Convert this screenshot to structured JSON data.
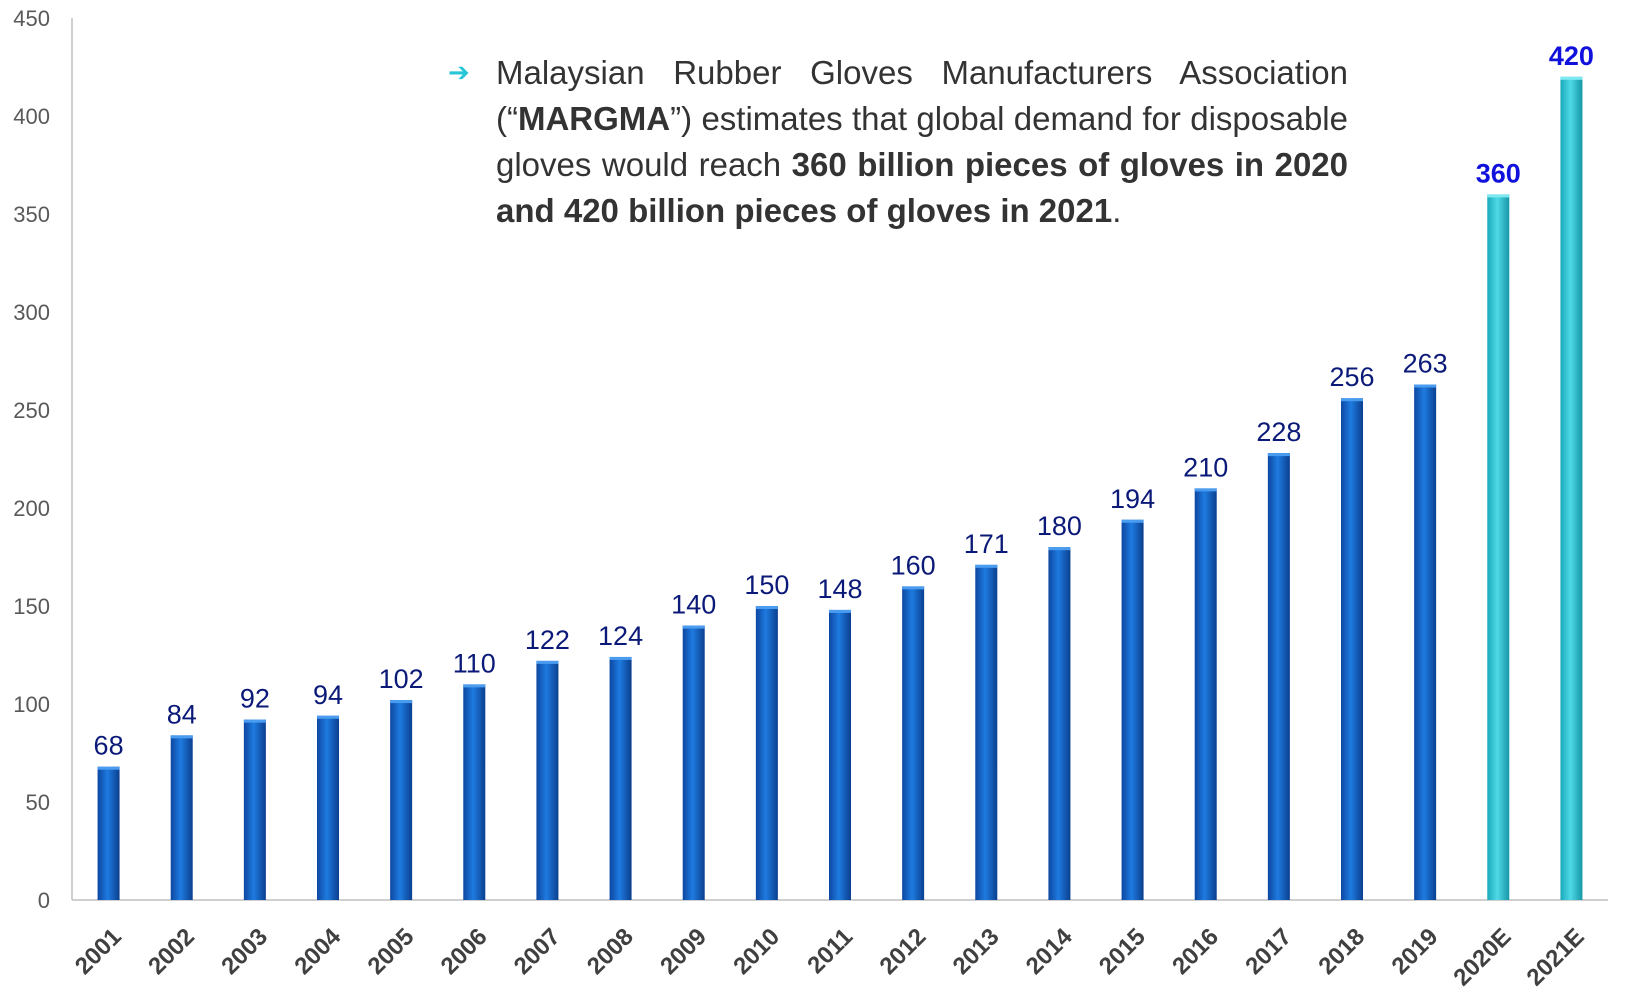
{
  "chart_data": {
    "type": "bar",
    "title": "",
    "xlabel": "",
    "ylabel": "",
    "ylim": [
      0,
      450
    ],
    "yticks": [
      0,
      50,
      100,
      150,
      200,
      250,
      300,
      350,
      400,
      450
    ],
    "categories": [
      "2001",
      "2002",
      "2003",
      "2004",
      "2005",
      "2006",
      "2007",
      "2008",
      "2009",
      "2010",
      "2011",
      "2012",
      "2013",
      "2014",
      "2015",
      "2016",
      "2017",
      "2018",
      "2019",
      "2020E",
      "2021E"
    ],
    "values": [
      68,
      84,
      92,
      94,
      102,
      110,
      122,
      124,
      140,
      150,
      148,
      160,
      171,
      180,
      194,
      210,
      228,
      256,
      263,
      360,
      420
    ],
    "estimate_flags": [
      false,
      false,
      false,
      false,
      false,
      false,
      false,
      false,
      false,
      false,
      false,
      false,
      false,
      false,
      false,
      false,
      false,
      false,
      false,
      true,
      true
    ],
    "grid": false,
    "legend": "none",
    "colors": {
      "actual_bar": "#1565c0",
      "estimate_bar": "#2ec4d4",
      "actual_label": "#0b1a78",
      "estimate_label": "#1111dd",
      "axis": "#bfbfbf"
    }
  },
  "annotation": {
    "icon": "arrow-right-icon",
    "segments": [
      {
        "text": "Malaysian Rubber Gloves Manufacturers Association (“",
        "bold": false
      },
      {
        "text": "MARGMA",
        "bold": true
      },
      {
        "text": "”) estimates that global demand for disposable gloves would reach ",
        "bold": false
      },
      {
        "text": "360 billion pieces of gloves in 2020 and 420 billion pieces of gloves in 2021",
        "bold": true
      },
      {
        "text": ".",
        "bold": false
      }
    ]
  }
}
